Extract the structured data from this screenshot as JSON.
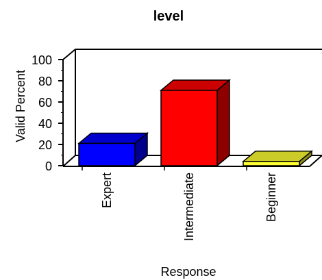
{
  "chart_data": {
    "type": "bar",
    "title": "level",
    "xlabel": "Response",
    "ylabel": "Valid Percent",
    "categories": [
      "Expert",
      "Intermediate",
      "Beginner"
    ],
    "values": [
      21,
      71,
      4
    ],
    "colors": [
      "#0000ff",
      "#ff0000",
      "#ffff33"
    ],
    "ylim": [
      0,
      100
    ],
    "yticks": [
      0,
      20,
      40,
      60,
      80,
      100
    ],
    "grid": false,
    "legend": "none",
    "style": "3d-box"
  }
}
